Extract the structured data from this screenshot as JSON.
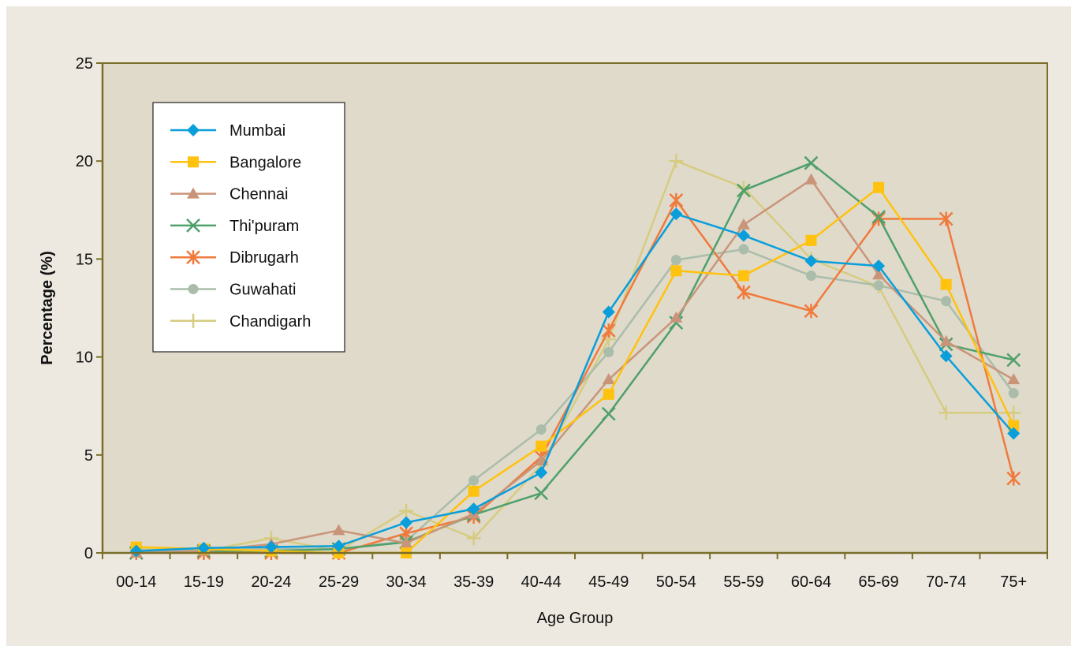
{
  "chart_data": {
    "type": "line",
    "title": "",
    "xlabel": "Age Group",
    "ylabel": "Percentage (%)",
    "ylim": [
      0,
      25
    ],
    "yticks": [
      0,
      5,
      10,
      15,
      20,
      25
    ],
    "categories": [
      "00-14",
      "15-19",
      "20-24",
      "25-29",
      "30-34",
      "35-39",
      "40-44",
      "45-49",
      "50-54",
      "55-59",
      "60-64",
      "65-69",
      "70-74",
      "75+"
    ],
    "grid": false,
    "legend_position": "top-left",
    "colors": {
      "plot_background": "#e0dacb",
      "axis": "#7a6e2a",
      "frame_background": "#ede9e0"
    },
    "series": [
      {
        "name": "Mumbai",
        "color": "#0a9edb",
        "marker": "diamond",
        "values": [
          0.1,
          0.25,
          0.3,
          0.35,
          1.55,
          2.25,
          4.1,
          12.3,
          17.3,
          16.2,
          14.9,
          14.65,
          10.05,
          6.1
        ]
      },
      {
        "name": "Bangalore",
        "color": "#ffc20e",
        "marker": "square",
        "values": [
          0.3,
          0.2,
          0.1,
          0.0,
          0.0,
          3.15,
          5.45,
          8.1,
          14.4,
          14.15,
          15.95,
          18.65,
          13.7,
          6.5
        ]
      },
      {
        "name": "Chennai",
        "color": "#c9957a",
        "marker": "triangle",
        "values": [
          0.0,
          0.1,
          0.45,
          1.15,
          0.5,
          2.0,
          4.7,
          8.85,
          12.0,
          16.75,
          19.05,
          14.2,
          10.8,
          8.85
        ]
      },
      {
        "name": "Thi'puram",
        "color": "#4fa06b",
        "marker": "x",
        "values": [
          0.0,
          0.1,
          0.1,
          0.2,
          0.55,
          1.95,
          3.05,
          7.1,
          11.75,
          18.5,
          19.9,
          17.15,
          10.65,
          9.85
        ]
      },
      {
        "name": "Dibrugarh",
        "color": "#f07a3c",
        "marker": "asterisk",
        "values": [
          0.0,
          0.0,
          0.0,
          0.0,
          1.0,
          1.85,
          4.9,
          11.35,
          18.0,
          13.3,
          12.35,
          17.05,
          17.05,
          3.8
        ]
      },
      {
        "name": "Guwahati",
        "color": "#a9bdaa",
        "marker": "circle",
        "values": [
          0.1,
          0.15,
          0.2,
          0.2,
          0.6,
          3.7,
          6.3,
          10.25,
          14.95,
          15.5,
          14.15,
          13.65,
          12.85,
          8.15
        ]
      },
      {
        "name": "Chandigarh",
        "color": "#d6cc80",
        "marker": "plus",
        "values": [
          0.2,
          0.1,
          0.75,
          0.1,
          2.15,
          0.75,
          4.5,
          10.9,
          20.0,
          18.65,
          15.0,
          13.6,
          7.15,
          7.15
        ]
      }
    ]
  }
}
